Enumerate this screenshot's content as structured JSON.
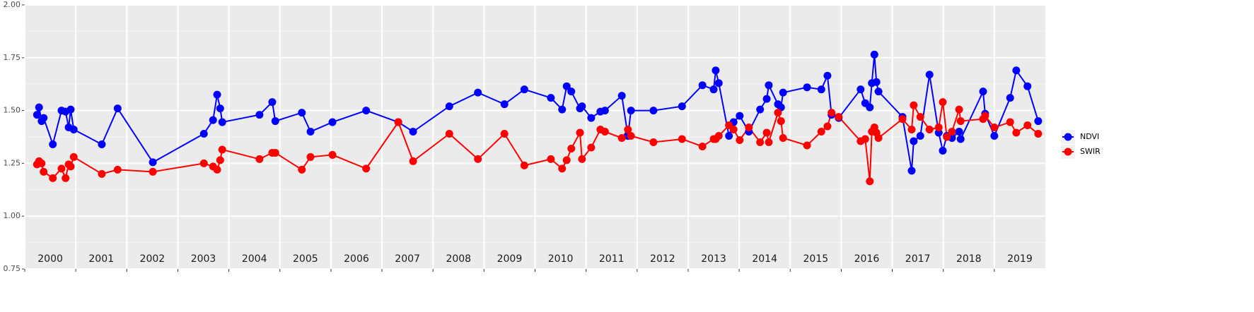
{
  "chart_data": {
    "type": "line",
    "x": [
      2000.24,
      2000.28,
      2000.33,
      2000.37,
      2000.55,
      2000.72,
      2000.8,
      2000.86,
      2000.9,
      2000.96,
      2001.51,
      2001.82,
      2002.51,
      2003.51,
      2003.69,
      2003.77,
      2003.83,
      2003.87,
      2004.6,
      2004.85,
      2004.91,
      2005.43,
      2005.6,
      2006.03,
      2006.69,
      2007.32,
      2007.61,
      2008.32,
      2008.88,
      2009.4,
      2009.79,
      2010.31,
      2010.53,
      2010.62,
      2010.71,
      2010.88,
      2010.92,
      2011.1,
      2011.28,
      2011.37,
      2011.7,
      2011.82,
      2011.88,
      2012.32,
      2012.88,
      2013.28,
      2013.5,
      2013.54,
      2013.6,
      2013.8,
      2013.89,
      2014.01,
      2014.19,
      2014.41,
      2014.54,
      2014.58,
      2014.76,
      2014.82,
      2014.86,
      2015.33,
      2015.61,
      2015.73,
      2015.81,
      2015.95,
      2016.38,
      2016.47,
      2016.56,
      2016.6,
      2016.65,
      2016.69,
      2016.73,
      2017.2,
      2017.38,
      2017.42,
      2017.55,
      2017.73,
      2017.91,
      2017.99,
      2018.07,
      2018.17,
      2018.31,
      2018.34,
      2018.78,
      2018.82,
      2019.0,
      2019.31,
      2019.43,
      2019.65,
      2019.86
    ],
    "series": [
      {
        "name": "NDVI",
        "color": "#0000ff",
        "values": [
          1.48,
          1.515,
          1.45,
          1.465,
          1.34,
          1.5,
          1.495,
          1.42,
          1.505,
          1.41,
          1.34,
          1.51,
          1.255,
          1.39,
          1.455,
          1.575,
          1.51,
          1.445,
          1.48,
          1.54,
          1.45,
          1.49,
          1.4,
          1.445,
          1.5,
          1.445,
          1.4,
          1.52,
          1.585,
          1.53,
          1.6,
          1.56,
          1.505,
          1.615,
          1.59,
          1.51,
          1.52,
          1.465,
          1.495,
          1.5,
          1.57,
          1.38,
          1.5,
          1.5,
          1.52,
          1.62,
          1.6,
          1.69,
          1.63,
          1.38,
          1.445,
          1.475,
          1.4,
          1.505,
          1.555,
          1.62,
          1.53,
          1.515,
          1.585,
          1.61,
          1.6,
          1.665,
          1.48,
          1.465,
          1.6,
          1.535,
          1.515,
          1.63,
          1.765,
          1.635,
          1.59,
          1.47,
          1.215,
          1.355,
          1.38,
          1.67,
          1.395,
          1.31,
          1.38,
          1.37,
          1.4,
          1.365,
          1.59,
          1.485,
          1.38,
          1.56,
          1.69,
          1.615,
          1.45
        ]
      },
      {
        "name": "SWIR",
        "color": "#ff0000",
        "values": [
          1.245,
          1.26,
          1.25,
          1.21,
          1.18,
          1.225,
          1.18,
          1.245,
          1.235,
          1.28,
          1.2,
          1.22,
          1.21,
          1.25,
          1.235,
          1.22,
          1.265,
          1.315,
          1.27,
          1.3,
          1.3,
          1.22,
          1.28,
          1.29,
          1.225,
          1.445,
          1.26,
          1.39,
          1.27,
          1.39,
          1.24,
          1.27,
          1.225,
          1.265,
          1.32,
          1.395,
          1.27,
          1.325,
          1.41,
          1.4,
          1.37,
          1.41,
          1.38,
          1.35,
          1.365,
          1.33,
          1.365,
          1.365,
          1.38,
          1.43,
          1.41,
          1.36,
          1.42,
          1.35,
          1.395,
          1.35,
          1.49,
          1.45,
          1.37,
          1.335,
          1.4,
          1.425,
          1.49,
          1.47,
          1.355,
          1.365,
          1.165,
          1.4,
          1.42,
          1.395,
          1.37,
          1.46,
          1.41,
          1.525,
          1.47,
          1.41,
          1.42,
          1.54,
          1.375,
          1.4,
          1.505,
          1.45,
          1.46,
          1.475,
          1.42,
          1.445,
          1.395,
          1.43,
          1.39
        ]
      }
    ],
    "xlim": [
      2000,
      2020
    ],
    "xticks": [
      2000,
      2001,
      2002,
      2003,
      2004,
      2005,
      2006,
      2007,
      2008,
      2009,
      2010,
      2011,
      2012,
      2013,
      2014,
      2015,
      2016,
      2017,
      2018,
      2019
    ],
    "ylim": [
      0.75,
      2.0
    ],
    "yticks": [
      {
        "value": 0.75,
        "label": "0.75"
      },
      {
        "value": 1.0,
        "label": "1.00"
      },
      {
        "value": 1.25,
        "label": "1.25"
      },
      {
        "value": 1.5,
        "label": "1.50"
      },
      {
        "value": 1.75,
        "label": "1.75"
      },
      {
        "value": 2.0,
        "label": "2.00"
      }
    ],
    "grid": true,
    "legend": "right"
  }
}
